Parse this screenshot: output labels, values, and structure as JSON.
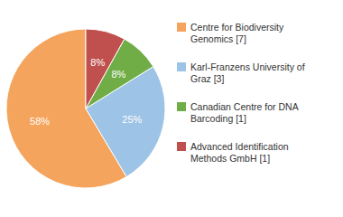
{
  "chart_data": {
    "type": "pie",
    "categories": [
      "Centre for Biodiversity\nGenomics [7]",
      "Karl-Franzens University of\nGraz [3]",
      "Canadian Centre for DNA\nBarcoding [1]",
      "Advanced Identification\nMethods GmbH [1]"
    ],
    "values": [
      58,
      25,
      8,
      8
    ],
    "value_labels": [
      "58%",
      "25%",
      "8%",
      "8%"
    ],
    "colors": [
      "#f5a45d",
      "#9dc3e6",
      "#70ad47",
      "#c0504d"
    ],
    "data_labels": true,
    "legend": "right"
  }
}
